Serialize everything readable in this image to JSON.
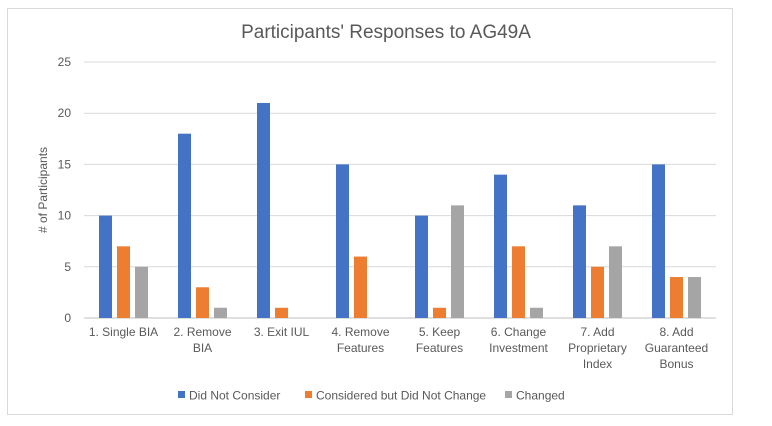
{
  "chart_data": {
    "type": "bar",
    "title": "Participants' Responses to AG49A",
    "ylabel": "# of Participants",
    "xlabel": "",
    "ylim": [
      0,
      25
    ],
    "yticks": [
      0,
      5,
      10,
      15,
      20,
      25
    ],
    "grid": true,
    "legend_position": "bottom",
    "categories": [
      [
        "1. Single BIA"
      ],
      [
        "2. Remove",
        "BIA"
      ],
      [
        "3. Exit IUL"
      ],
      [
        "4. Remove",
        "Features"
      ],
      [
        "5. Keep",
        "Features"
      ],
      [
        "6. Change",
        "Investment"
      ],
      [
        "7. Add",
        "Proprietary",
        "Index"
      ],
      [
        "8. Add",
        "Guaranteed",
        "Bonus"
      ]
    ],
    "series": [
      {
        "name": "Did Not Consider",
        "color": "#4472c4",
        "values": [
          10,
          18,
          21,
          15,
          10,
          14,
          11,
          15
        ]
      },
      {
        "name": "Considered but Did Not Change",
        "color": "#ed7d31",
        "values": [
          7,
          3,
          1,
          6,
          1,
          7,
          5,
          4
        ]
      },
      {
        "name": "Changed",
        "color": "#a5a5a5",
        "values": [
          5,
          1,
          0,
          0,
          11,
          1,
          7,
          4
        ]
      }
    ]
  }
}
